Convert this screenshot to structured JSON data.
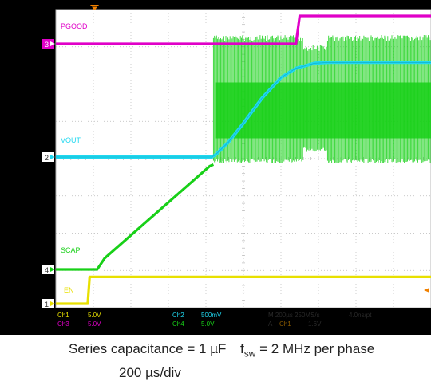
{
  "chart_data": {
    "type": "line",
    "title": "",
    "time_per_div": "200 µs/div",
    "grid": true,
    "divisions": {
      "x": 10,
      "y": 8
    },
    "trigger_marker_color": "#f08000",
    "series": [
      {
        "name": "PGOOD",
        "channel": "3",
        "color": "#e000c8",
        "scale": "5.0V",
        "points": [
          [
            0,
            0.0
          ],
          [
            6.4,
            0.0
          ],
          [
            6.5,
            5.0
          ],
          [
            10,
            5.0
          ]
        ]
      },
      {
        "name": "VOUT",
        "channel": "2",
        "color": "#20d8f0",
        "scale": "500mV",
        "points": [
          [
            0,
            0.0
          ],
          [
            4.15,
            0.0
          ],
          [
            4.25,
            0.05
          ],
          [
            4.6,
            0.35
          ],
          [
            5.0,
            0.8
          ],
          [
            5.5,
            1.4
          ],
          [
            6.0,
            1.88
          ],
          [
            6.4,
            2.1
          ],
          [
            6.9,
            2.22
          ],
          [
            7.3,
            2.24
          ],
          [
            10,
            2.24
          ]
        ]
      },
      {
        "name": "SCAP",
        "channel": "4",
        "color": "#18d018",
        "scale": "5.0V",
        "points": [
          [
            0,
            0.0
          ],
          [
            1.1,
            0.0
          ],
          [
            1.3,
            0.2
          ],
          [
            4.1,
            1.85
          ],
          [
            4.2,
            1.88
          ]
        ],
        "switching_envelope": {
          "start": 4.2,
          "end": 10,
          "low": 1.9,
          "high": 4.2
        }
      },
      {
        "name": "EN",
        "channel": "1",
        "color": "#e8e000",
        "scale": "5.0V",
        "points": [
          [
            0,
            0.0
          ],
          [
            0.85,
            0.0
          ],
          [
            0.9,
            1.2
          ],
          [
            10,
            1.2
          ]
        ]
      }
    ]
  },
  "scope_readout": {
    "ch1": "Ch1",
    "ch1_scale": "5.0V",
    "ch2": "Ch2",
    "ch2_scale": "500mV",
    "ch3": "Ch3",
    "ch3_scale": "5.0V",
    "ch4": "Ch4",
    "ch4_scale": "5.0V",
    "horizontal": "M 200µs 250MS/s",
    "record": "4.0ns/pt",
    "trigger_mode": "A",
    "trigger_ch": "Ch1",
    "trigger_level": "1.6V"
  },
  "caption": {
    "series_cap": "Series capacitance = 1 µF",
    "fsw_f": "f",
    "fsw_sub": "sw",
    "fsw_rest": " = 2 MHz per phase",
    "time_div": "200 µs/div"
  }
}
